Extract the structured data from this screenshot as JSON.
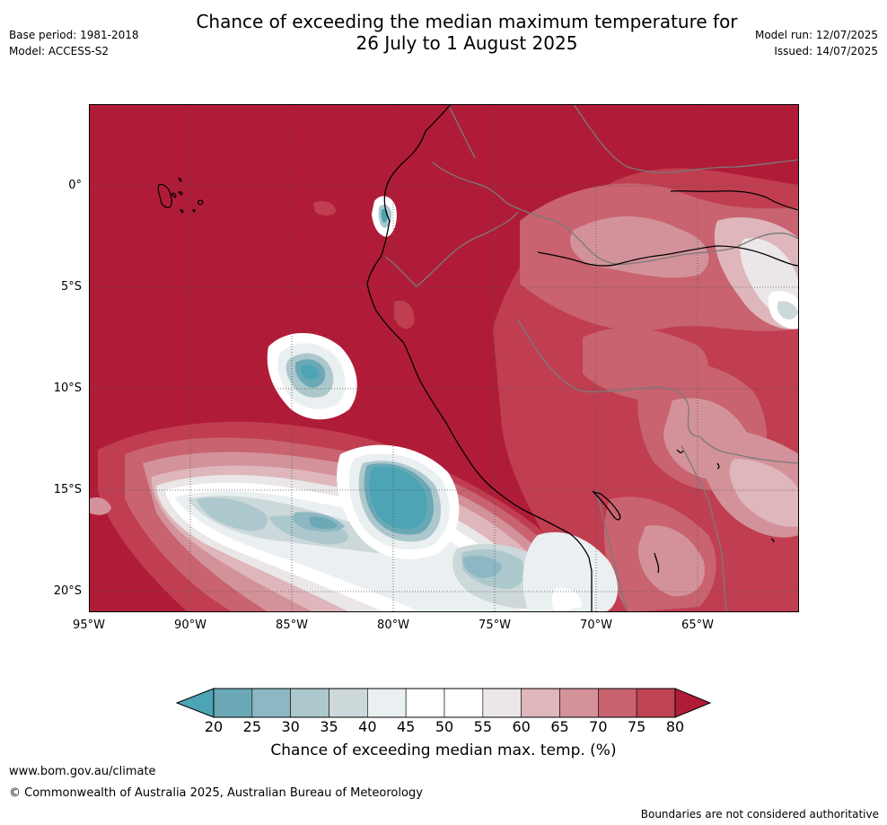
{
  "header": {
    "title_line1": "Chance of exceeding the median maximum temperature for",
    "title_line2": "26 July to 1 August 2025",
    "base_period": "Base period: 1981-2018",
    "model": "Model: ACCESS-S2",
    "model_run": "Model run: 12/07/2025",
    "issued": "Issued: 14/07/2025"
  },
  "map": {
    "lat_labels": [
      "0°",
      "5°S",
      "10°S",
      "15°S",
      "20°S"
    ],
    "lon_labels": [
      "95°W",
      "90°W",
      "85°W",
      "80°W",
      "75°W",
      "70°W",
      "65°W"
    ]
  },
  "colorbar": {
    "label": "Chance of exceeding median max. temp. (%)",
    "ticks": [
      "20",
      "25",
      "30",
      "35",
      "40",
      "45",
      "50",
      "55",
      "60",
      "65",
      "70",
      "75",
      "80"
    ],
    "colors": [
      "#6ba8b6",
      "#8db8c3",
      "#acc8cc",
      "#cdd8da",
      "#eaeff1",
      "#ffffff",
      "#ffffff",
      "#ebe7e8",
      "#deb6bb",
      "#d3929a",
      "#c8636f",
      "#bf4352"
    ],
    "under_color": "#4ca4b4",
    "over_color": "#b01c38"
  },
  "footer": {
    "url": "www.bom.gov.au/climate",
    "copyright": "© Commonwealth of Australia 2025, Australian Bureau of Meteorology",
    "disclaimer": "Boundaries are not considered authoritative"
  }
}
